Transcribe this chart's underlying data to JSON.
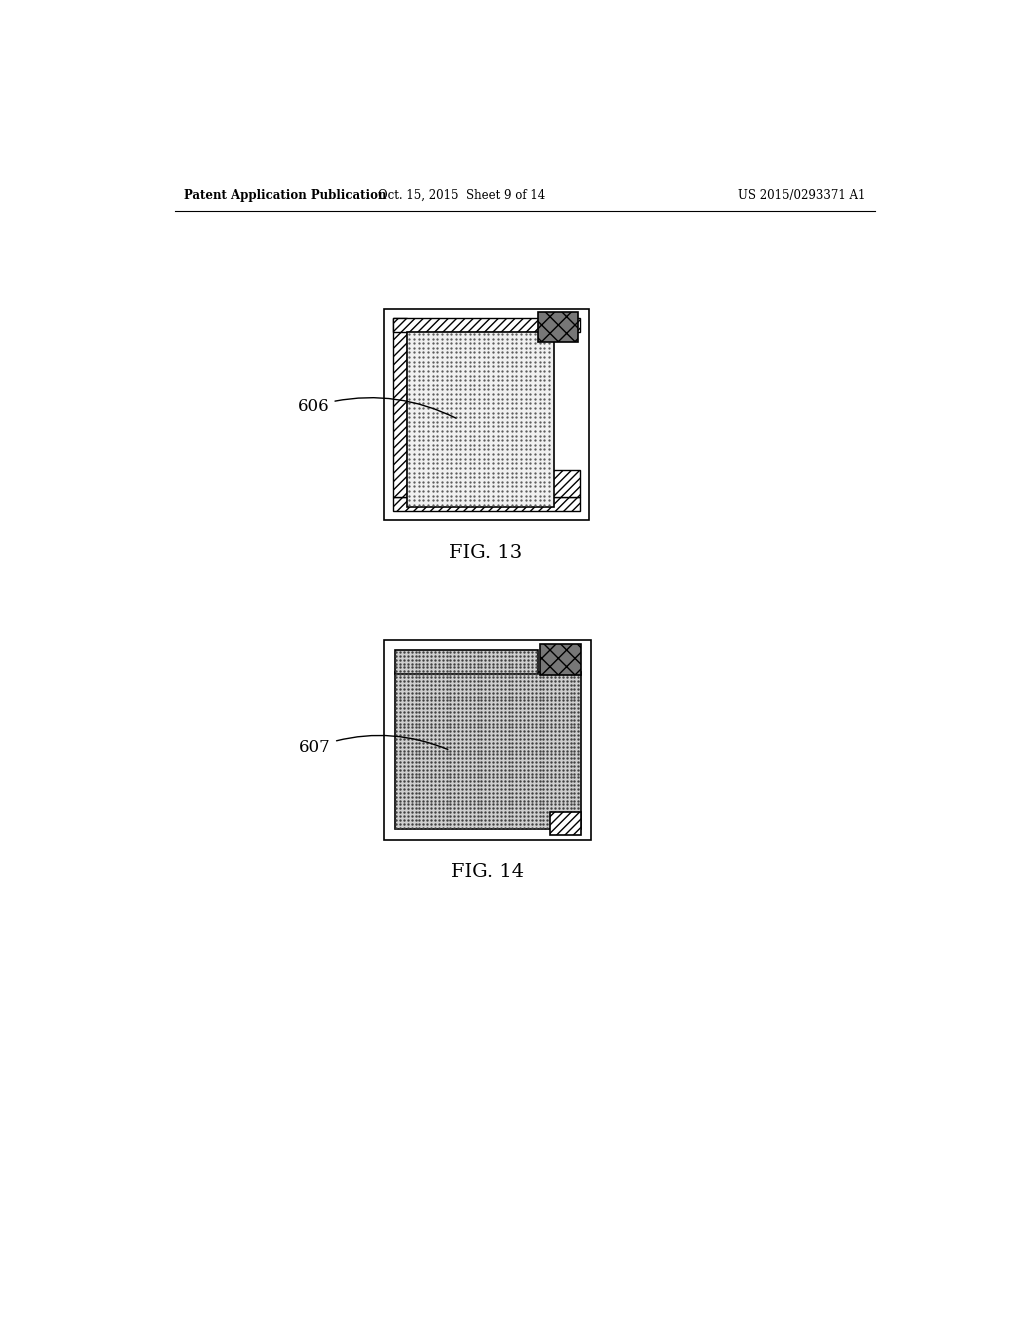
{
  "header_left": "Patent Application Publication",
  "header_mid": "Oct. 15, 2015  Sheet 9 of 14",
  "header_right": "US 2015/0293371 A1",
  "fig13_label": "FIG. 13",
  "fig14_label": "FIG. 14",
  "label606": "606",
  "label607": "607",
  "bg_color": "#ffffff"
}
